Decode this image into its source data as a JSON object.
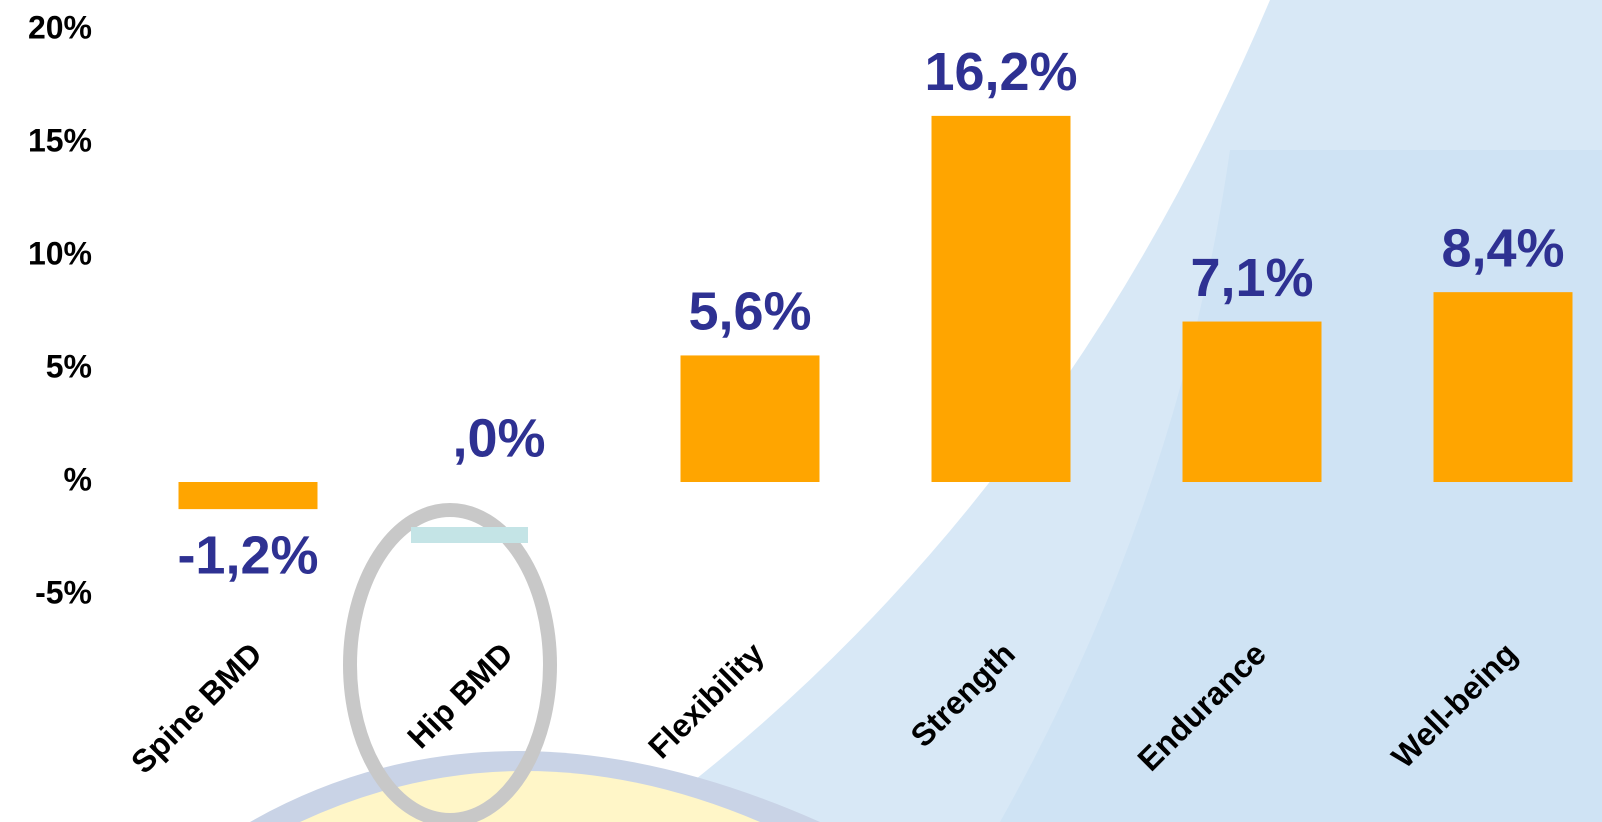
{
  "chart_data": {
    "type": "bar",
    "categories": [
      "Spine BMD",
      "Hip BMD",
      "Flexibility",
      "Strength",
      "Endurance",
      "Well-being"
    ],
    "values": [
      -1.2,
      0,
      5.6,
      16.2,
      7.1,
      8.4
    ],
    "value_labels": [
      "-1,2%",
      ",0%",
      "5,6%",
      "16,2%",
      "7,1%",
      "8,4%"
    ],
    "color": "#ffa500",
    "ylim": [
      -5,
      20
    ],
    "yticks": [
      {
        "value": -5,
        "label": "-5%"
      },
      {
        "value": 0,
        "label": "%"
      },
      {
        "value": 5,
        "label": "5%"
      },
      {
        "value": 10,
        "label": "10%"
      },
      {
        "value": 15,
        "label": "15%"
      },
      {
        "value": 20,
        "label": "20%"
      }
    ],
    "grid": false
  }
}
